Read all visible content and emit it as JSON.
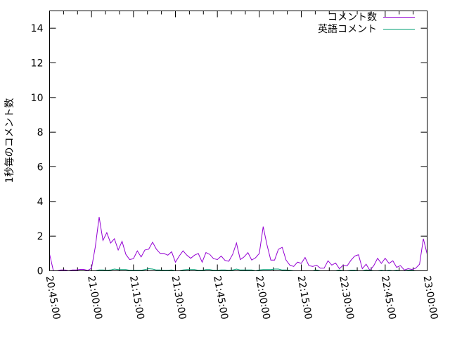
{
  "chart_data": {
    "type": "line",
    "title": "",
    "xlabel": "",
    "ylabel": "1秒毎のコメント数",
    "xlim": [
      "20:45:00",
      "23:00:00"
    ],
    "ylim": [
      0,
      15
    ],
    "x_tick_labels": [
      "20:45:00",
      "21:00:00",
      "21:15:00",
      "21:30:00",
      "21:45:00",
      "22:00:00",
      "22:15:00",
      "22:30:00",
      "22:45:00",
      "23:00:00"
    ],
    "y_tick_labels": [
      "0",
      "2",
      "4",
      "6",
      "8",
      "10",
      "12",
      "14"
    ],
    "grid": false,
    "legend": "top-right",
    "series": [
      {
        "name": "コメント数",
        "color": "#9400d3",
        "values": [
          0.97,
          0,
          0,
          0.05,
          0.05,
          0,
          0.05,
          0.05,
          0.08,
          0.08,
          0.02,
          0.15,
          1.4,
          3.1,
          1.75,
          2.2,
          1.6,
          1.85,
          1.2,
          1.7,
          0.95,
          0.65,
          0.7,
          1.15,
          0.8,
          1.2,
          1.25,
          1.65,
          1.25,
          1.0,
          1.0,
          0.9,
          1.1,
          0.5,
          0.85,
          1.15,
          0.9,
          0.72,
          0.9,
          1.0,
          0.5,
          1.05,
          0.95,
          0.7,
          0.65,
          0.85,
          0.6,
          0.55,
          0.95,
          1.6,
          0.65,
          0.8,
          1.05,
          0.62,
          0.75,
          1.0,
          2.55,
          1.5,
          0.62,
          0.62,
          1.25,
          1.35,
          0.62,
          0.33,
          0.25,
          0.5,
          0.43,
          0.77,
          0.3,
          0.25,
          0.33,
          0.15,
          0.15,
          0.58,
          0.33,
          0.45,
          0.12,
          0.33,
          0.28,
          0.6,
          0.85,
          0.93,
          0.12,
          0.38,
          0.02,
          0.3,
          0.72,
          0.43,
          0.72,
          0.43,
          0.58,
          0.2,
          0.3,
          0.05,
          0.12,
          0.08,
          0.15,
          0.38,
          1.85,
          0.97
        ]
      },
      {
        "name": "英語コメント",
        "color": "#009e73",
        "values": [
          0,
          0,
          0,
          0,
          0,
          0,
          0,
          0,
          0,
          0,
          0,
          0,
          0,
          0.05,
          0.05,
          0.03,
          0.05,
          0.1,
          0.07,
          0.07,
          0.07,
          0.03,
          0.03,
          0.03,
          0.03,
          0.07,
          0.12,
          0.1,
          0.05,
          0.05,
          0.03,
          0.03,
          0.05,
          0,
          0,
          0.05,
          0.07,
          0.07,
          0.07,
          0.03,
          0.03,
          0.07,
          0.07,
          0.03,
          0.03,
          0.05,
          0.05,
          0.03,
          0.05,
          0.1,
          0.05,
          0.05,
          0.05,
          0.05,
          0,
          0.05,
          0.07,
          0.07,
          0.07,
          0.1,
          0.1,
          0.05,
          0.05,
          0.03,
          0,
          0,
          0,
          0,
          0,
          0,
          0.05,
          0,
          0,
          0,
          0,
          0,
          0.05,
          0,
          0,
          0.03,
          0.03,
          0,
          0,
          0.05,
          0.03,
          0,
          0,
          0.03,
          0,
          0.03,
          0,
          0.03,
          0,
          0,
          0.03,
          0.03,
          0,
          0,
          0,
          0
        ]
      }
    ]
  }
}
